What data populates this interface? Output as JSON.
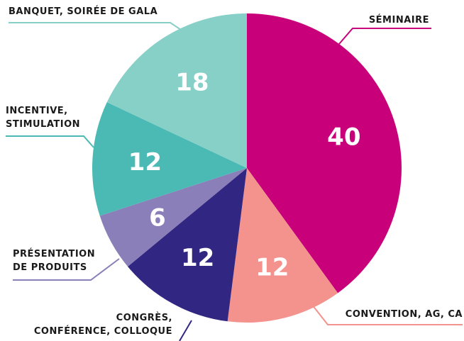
{
  "chart_data": {
    "type": "pie",
    "categories": [
      [
        "SÉMINAIRE"
      ],
      [
        "CONVENTION, AG, CA"
      ],
      [
        "CONGRÈS,",
        "CONFÉRENCE, COLLOQUE"
      ],
      [
        "PRÉSENTATION",
        "DE PRODUITS"
      ],
      [
        "INCENTIVE,",
        "STIMULATION"
      ],
      [
        "BANQUET, SOIRÉE DE GALA"
      ]
    ],
    "values": [
      40,
      12,
      12,
      6,
      12,
      18
    ],
    "colors": [
      "#c8007a",
      "#f4928e",
      "#312783",
      "#8a7fb8",
      "#4cbab4",
      "#86d0c8"
    ]
  }
}
